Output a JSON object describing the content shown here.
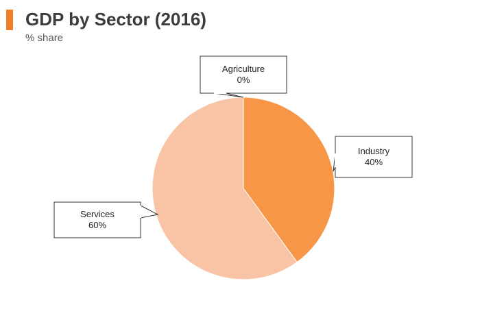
{
  "header": {
    "title": "GDP by Sector (2016)",
    "subtitle": "% share"
  },
  "colors": {
    "accent": "#f07e26",
    "title": "#3c3c3c",
    "label_border": "#333333"
  },
  "chart_data": {
    "type": "pie",
    "title": "GDP by Sector (2016)",
    "subtitle": "% share",
    "slices": [
      {
        "label": "Agriculture",
        "value": 0,
        "display": "0%",
        "color": "#f8b68a"
      },
      {
        "label": "Industry",
        "value": 40,
        "display": "40%",
        "color": "#f79646"
      },
      {
        "label": "Services",
        "value": 60,
        "display": "60%",
        "color": "#f9c3a5"
      }
    ],
    "legend": "none"
  }
}
